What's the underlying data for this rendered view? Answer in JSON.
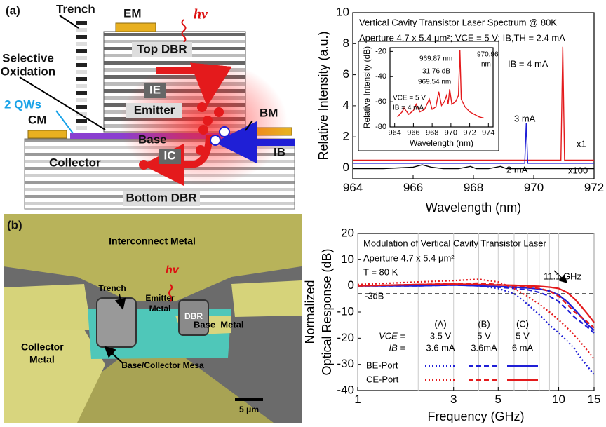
{
  "schematic": {
    "panel": "(a)",
    "trench": "Trench",
    "em": "EM",
    "hv": "hv",
    "top_dbr": "Top DBR",
    "selective_oxidation": [
      "Selective",
      "Oxidation"
    ],
    "ie": "IE",
    "qws": "2 QWs",
    "emitter": "Emitter",
    "bm": "BM",
    "cm": "CM",
    "base": "Base",
    "ib": "IB",
    "ic": "IC",
    "collector": "Collector",
    "bottom_dbr": "Bottom DBR"
  },
  "micrograph": {
    "panel": "(b)",
    "interconnect": "Interconnect Metal",
    "trench": "Trench",
    "hv": "hv",
    "emitter_metal": [
      "Emitter",
      "Metal"
    ],
    "dbr": "DBR",
    "base_metal": "Base  Metal",
    "collector_metal": [
      "Collector",
      "Metal"
    ],
    "mesa": "Base/Collector Mesa",
    "scale": "5 μm"
  },
  "chart_data": [
    {
      "type": "line",
      "title": "Vertical Cavity Transistor Laser Spectrum @ 80K",
      "subtitle": "Aperture 4.7 x 5.4 μm²; VCE = 5 V; IB,TH = 2.4 mA",
      "xlabel": "Wavelength (nm)",
      "ylabel": "Relative Intensity (a.u.)",
      "x": [
        964,
        964.5,
        965,
        965.5,
        966,
        966.3,
        966.6,
        967,
        967.5,
        967.9,
        968.1,
        968.5,
        968.9,
        969.1,
        969.5,
        969.7,
        969.75,
        969.8,
        970,
        970.5,
        970.9,
        970.96,
        971.02,
        971.5,
        972
      ],
      "series": [
        {
          "color": "#e41a1c",
          "values": [
            0.5,
            0.5,
            0.5,
            0.5,
            0.5,
            0.5,
            0.5,
            0.5,
            0.5,
            0.5,
            0.5,
            0.5,
            0.5,
            0.5,
            0.5,
            0.5,
            0.5,
            0.5,
            0.5,
            0.5,
            0.5,
            7.8,
            0.5,
            0.5,
            0.5
          ]
        },
        {
          "color": "#1f1fd6",
          "values": [
            0.3,
            0.3,
            0.3,
            0.3,
            0.3,
            0.3,
            0.3,
            0.3,
            0.3,
            0.3,
            0.3,
            0.3,
            0.3,
            0.3,
            0.3,
            0.3,
            2.9,
            0.3,
            0.3,
            0.3,
            0.3,
            0.3,
            0.3,
            0.3,
            0.3
          ]
        },
        {
          "color": "#000000",
          "values": [
            -0.05,
            -0.05,
            -0.05,
            0,
            0.05,
            0.2,
            0.05,
            -0.05,
            -0.05,
            0.1,
            -0.05,
            -0.05,
            0.1,
            -0.05,
            -0.05,
            -0.05,
            -0.05,
            -0.05,
            -0.05,
            -0.05,
            -0.05,
            -0.05,
            -0.05,
            -0.05,
            -0.05
          ]
        }
      ],
      "annotations": [
        "IB = 4 mA",
        "3 mA",
        "x1",
        "2 mA",
        "x100"
      ],
      "xlim": [
        964,
        972
      ],
      "xticks": [
        964,
        966,
        968,
        970,
        972
      ],
      "ylim": [
        -0.7,
        10
      ],
      "yticks": [
        0,
        2,
        4,
        6,
        8,
        10
      ]
    },
    {
      "type": "line",
      "xlabel": "Wavelength (nm)",
      "ylabel": "Relative Intensity (dB)",
      "x": [
        964.3,
        964.8,
        965,
        965.5,
        966,
        966.3,
        966.7,
        967.2,
        967.7,
        968,
        968.4,
        968.7,
        969,
        969.3,
        969.54,
        969.7,
        969.87,
        970.1,
        970.5,
        970.8,
        970.96,
        971.1,
        971.5,
        972,
        972.5,
        973,
        973.5
      ],
      "series": [
        {
          "color": "#e41a1c",
          "values": [
            -72,
            -68,
            -65,
            -70,
            -67,
            -62,
            -68,
            -66,
            -58,
            -66,
            -64,
            -52,
            -63,
            -60,
            -55,
            -62,
            -50,
            -62,
            -60,
            -55,
            -19,
            -58,
            -64,
            -68,
            -70,
            -72,
            -73
          ]
        }
      ],
      "annotations": [
        "969.87 nm",
        "970.96",
        "nm",
        "31.76 dB",
        "969.54 nm",
        "VCE = 5 V",
        "IB = 4 mA"
      ],
      "xlim": [
        963.5,
        974.5
      ],
      "xticks": [
        964,
        966,
        968,
        970,
        972,
        974
      ],
      "ylim": [
        -80,
        -17
      ],
      "yticks": [
        -80,
        -60,
        -40,
        -20
      ]
    },
    {
      "type": "line",
      "logx": true,
      "grid": true,
      "xlabel": "Frequency (GHz)",
      "ylabel": [
        "Normalized",
        "Optical Response (dB)"
      ],
      "x": [
        1,
        2,
        3,
        4,
        5,
        6,
        7,
        8,
        9,
        10,
        11,
        12,
        13,
        14,
        15
      ],
      "series": [
        {
          "color": "#1f1fd6",
          "dash": "dotted",
          "values": [
            0,
            0.2,
            0.5,
            0,
            -1,
            -3,
            -7,
            -11,
            -15,
            -18,
            -21,
            -24,
            -28,
            -31,
            -34
          ]
        },
        {
          "color": "#1f1fd6",
          "dash": "dashed",
          "values": [
            0,
            0,
            0.3,
            0,
            -0.5,
            -1,
            -1.5,
            -2.5,
            -4,
            -6,
            -9,
            -12,
            -14,
            -16,
            -18
          ]
        },
        {
          "color": "#1f1fd6",
          "dash": "solid",
          "values": [
            0,
            0,
            0.3,
            0,
            -0.3,
            -0.5,
            -0.8,
            -1.2,
            -2,
            -3.5,
            -6,
            -9,
            -12,
            -15,
            -17
          ]
        },
        {
          "color": "#e41a1c",
          "dash": "dotted",
          "values": [
            0.5,
            1.5,
            2,
            2.5,
            1.5,
            -1,
            -4,
            -7,
            -10,
            -13,
            -16,
            -19,
            -22,
            -25,
            -28
          ]
        },
        {
          "color": "#e41a1c",
          "dash": "dashed",
          "values": [
            0,
            0.5,
            0.8,
            1,
            0.5,
            0,
            -0.5,
            -1,
            -2,
            -4,
            -7,
            -10,
            -12,
            -14,
            -16
          ]
        },
        {
          "color": "#e41a1c",
          "dash": "solid",
          "values": [
            0,
            0.5,
            0.7,
            0.5,
            0.3,
            0.2,
            0,
            -0.2,
            -0.5,
            -1,
            -2.5,
            -5,
            -8,
            -11,
            -14
          ]
        }
      ],
      "reference": -3,
      "annotations": [
        "Modulation of Vertical Cavity Transistor Laser",
        "Aperture 4.7 x 5.4 μm²",
        "T = 80 K",
        "11.1 GHz",
        "-3dB"
      ],
      "legend": {
        "columns": [
          "(A)",
          "(B)",
          "(C)"
        ],
        "vce_label": "VCE =",
        "vce": [
          "3.5 V",
          "5 V",
          "5 V"
        ],
        "ib_label": "IB =",
        "ib": [
          "3.6 mA",
          "3.6mA",
          "6 mA"
        ],
        "rows": [
          "BE-Port",
          "CE-Port"
        ]
      },
      "xlim": [
        1,
        15
      ],
      "xticks": [
        1,
        3,
        5,
        10,
        15
      ],
      "xminor": [
        2,
        4,
        6,
        7,
        8,
        9
      ],
      "ylim": [
        -40,
        20
      ],
      "yticks": [
        -40,
        -30,
        -20,
        -10,
        0,
        10,
        20
      ]
    }
  ]
}
